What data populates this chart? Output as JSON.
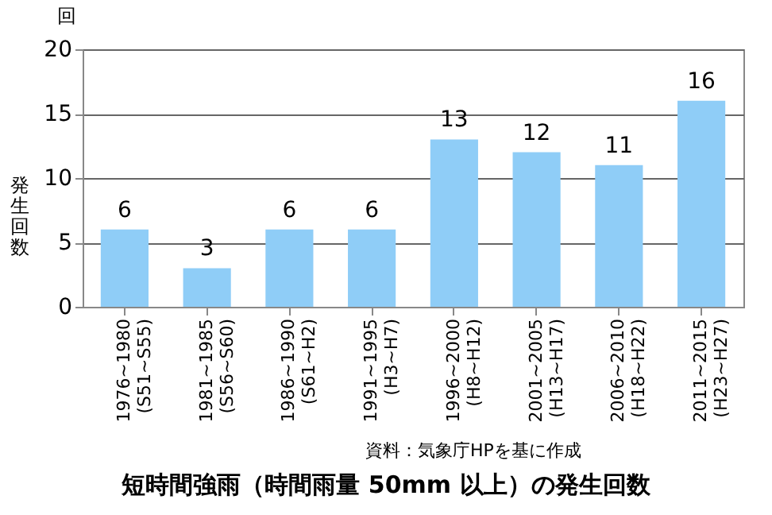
{
  "chart_data": {
    "type": "bar",
    "title": "短時間強雨（時間雨量 50mm 以上）の発生回数",
    "ylabel": "発生回数",
    "annotations": [
      "回",
      "資料：気象庁HPを基に作成"
    ],
    "categories": [
      "1976~1980\n(S51~S55)",
      "1981~1985\n(S56~S60)",
      "1986~1990\n(S61~H2)",
      "1991~1995\n(H3~H7)",
      "1996~2000\n(H8~H12)",
      "2001~2005\n(H13~H17)",
      "2006~2010\n(H18~H22)",
      "2011~2015\n(H23~H27)"
    ],
    "values": [
      6,
      3,
      6,
      6,
      13,
      12,
      11,
      16
    ],
    "color": "#8fcdf7",
    "ylim": [
      0,
      20
    ],
    "yticks": [
      0,
      5,
      10,
      15,
      20
    ],
    "grid": "y",
    "data_labels": true
  }
}
